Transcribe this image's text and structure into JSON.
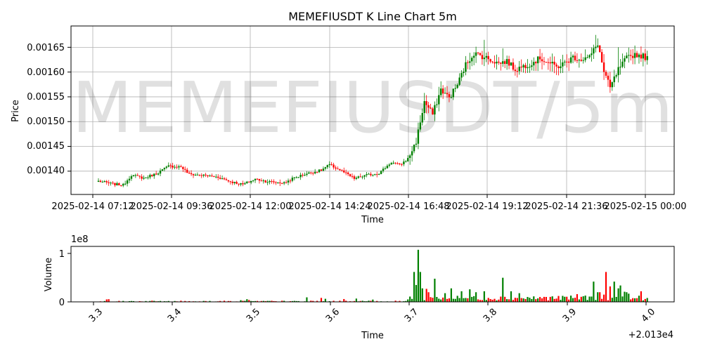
{
  "chart_data": [
    {
      "type": "candlestick",
      "title": "MEMEFIUSDT K Line Chart 5m",
      "watermark": "MEMEFIUSDT/5m",
      "xlabel": "Time",
      "ylabel": "Price",
      "grid": true,
      "ylim": [
        0.001353,
        0.001693
      ],
      "y_ticks": [
        "0.00140",
        "0.00145",
        "0.00150",
        "0.00155",
        "0.00160",
        "0.00165"
      ],
      "x_ticks": [
        "2025-02-14 07:12",
        "2025-02-14 09:36",
        "2025-02-14 12:00",
        "2025-02-14 14:24",
        "2025-02-14 16:48",
        "2025-02-14 19:12",
        "2025-02-14 21:36",
        "2025-02-15 00:00"
      ],
      "up_color": "#008000",
      "down_color": "#ff0000",
      "price_path": [
        [
          0,
          0.00138
        ],
        [
          7,
          0.001374
        ],
        [
          12,
          0.001372
        ],
        [
          16,
          0.001392
        ],
        [
          22,
          0.001386
        ],
        [
          28,
          0.001395
        ],
        [
          34,
          0.00141
        ],
        [
          40,
          0.001409
        ],
        [
          44,
          0.001394
        ],
        [
          52,
          0.001391
        ],
        [
          58,
          0.001388
        ],
        [
          64,
          0.001379
        ],
        [
          70,
          0.001373
        ],
        [
          76,
          0.001384
        ],
        [
          82,
          0.001379
        ],
        [
          90,
          0.001376
        ],
        [
          94,
          0.001385
        ],
        [
          100,
          0.001394
        ],
        [
          108,
          0.001402
        ],
        [
          112,
          0.001413
        ],
        [
          118,
          0.0014
        ],
        [
          124,
          0.001385
        ],
        [
          130,
          0.001392
        ],
        [
          136,
          0.001396
        ],
        [
          142,
          0.001418
        ],
        [
          146,
          0.001412
        ],
        [
          150,
          0.001425
        ],
        [
          154,
          0.00146
        ],
        [
          158,
          0.00154
        ],
        [
          162,
          0.001515
        ],
        [
          166,
          0.001565
        ],
        [
          170,
          0.001548
        ],
        [
          174,
          0.001575
        ],
        [
          178,
          0.001615
        ],
        [
          182,
          0.001638
        ],
        [
          186,
          0.001632
        ],
        [
          190,
          0.001625
        ],
        [
          194,
          0.001618
        ],
        [
          198,
          0.001622
        ],
        [
          202,
          0.001605
        ],
        [
          206,
          0.001612
        ],
        [
          210,
          0.001618
        ],
        [
          214,
          0.001628
        ],
        [
          218,
          0.00162
        ],
        [
          222,
          0.00161
        ],
        [
          226,
          0.001618
        ],
        [
          230,
          0.00163
        ],
        [
          234,
          0.001626
        ],
        [
          238,
          0.00163
        ],
        [
          242,
          0.001658
        ],
        [
          245,
          0.0016
        ],
        [
          248,
          0.001568
        ],
        [
          252,
          0.001605
        ],
        [
          256,
          0.001628
        ],
        [
          260,
          0.001636
        ],
        [
          264,
          0.001632
        ],
        [
          266,
          0.001628
        ]
      ],
      "spikes": [
        [
          241,
          0.001675
        ],
        [
          187,
          0.001665
        ],
        [
          196,
          0.001648
        ],
        [
          252,
          0.00165
        ]
      ]
    },
    {
      "type": "bar",
      "ylabel": "Volume",
      "xlabel": "Time",
      "y_ticks": [
        "0",
        "1"
      ],
      "y_scale_label": "1e8",
      "x_ticks": [
        "3.3",
        "3.4",
        "3.5",
        "3.6",
        "3.7",
        "3.8",
        "3.9",
        "4.0"
      ],
      "x_offset_label": "+2.013e4",
      "x_range": [
        20133.0,
        20134.0
      ],
      "ylim": [
        0,
        115000000
      ],
      "volume_spikes": [
        [
          153,
          62000000
        ],
        [
          154,
          35000000
        ],
        [
          155,
          108000000
        ],
        [
          156,
          62000000
        ],
        [
          157,
          28000000
        ],
        [
          159,
          27000000
        ],
        [
          160,
          20000000
        ],
        [
          163,
          48000000
        ],
        [
          168,
          18000000
        ],
        [
          171,
          28000000
        ],
        [
          176,
          22000000
        ],
        [
          180,
          26000000
        ],
        [
          183,
          20000000
        ],
        [
          187,
          22000000
        ],
        [
          196,
          50000000
        ],
        [
          200,
          22000000
        ],
        [
          204,
          18000000
        ],
        [
          232,
          16000000
        ],
        [
          236,
          13000000
        ],
        [
          240,
          42000000
        ],
        [
          242,
          20000000
        ],
        [
          243,
          20000000
        ],
        [
          245,
          15000000
        ],
        [
          246,
          62000000
        ],
        [
          248,
          32000000
        ],
        [
          250,
          42000000
        ],
        [
          252,
          28000000
        ],
        [
          253,
          34000000
        ],
        [
          255,
          21000000
        ],
        [
          256,
          20000000
        ],
        [
          257,
          17000000
        ],
        [
          263,
          22000000
        ],
        [
          265,
          6000000
        ]
      ]
    }
  ]
}
